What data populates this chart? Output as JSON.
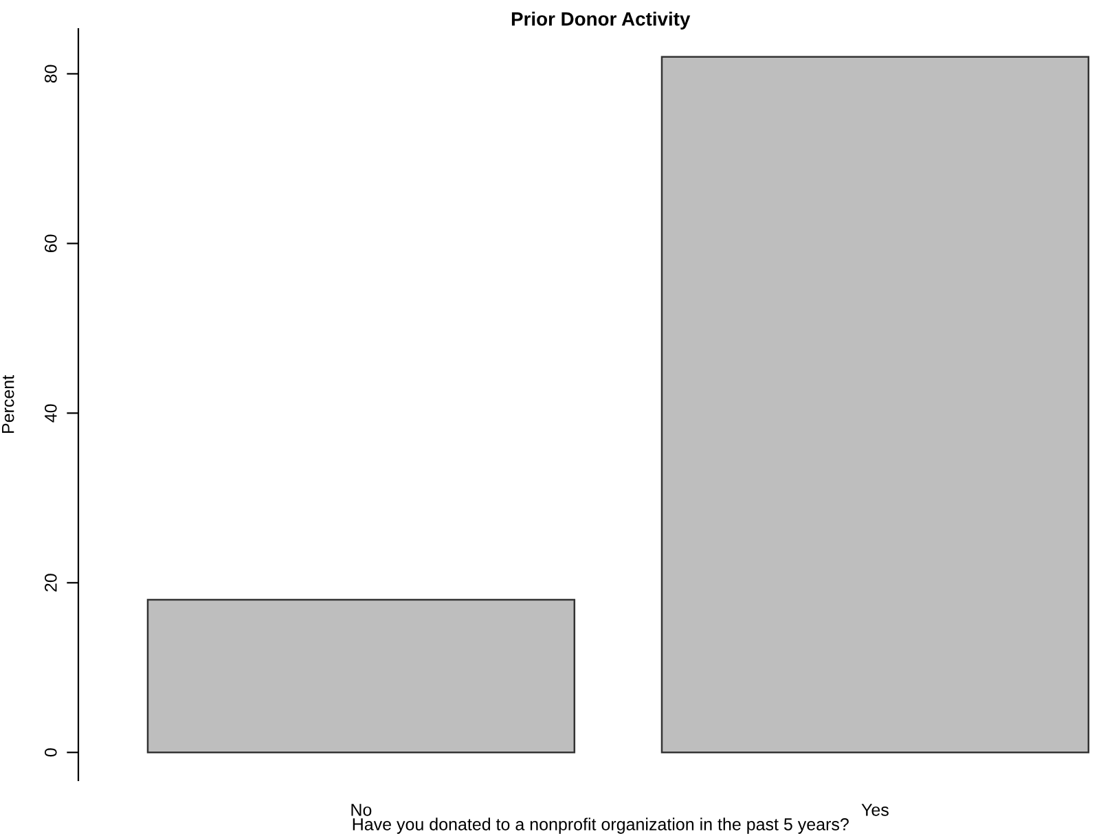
{
  "chart_data": {
    "type": "bar",
    "title": "Prior Donor Activity",
    "xlabel": "Have you donated to a nonprofit organization in the past 5 years?",
    "ylabel": "Percent",
    "categories": [
      "No",
      "Yes"
    ],
    "values": [
      18,
      82
    ],
    "color": "#bebebe",
    "ylim": [
      -3.3,
      85.3
    ],
    "yticks": [
      0,
      20,
      40,
      60,
      80
    ],
    "grid": false
  }
}
